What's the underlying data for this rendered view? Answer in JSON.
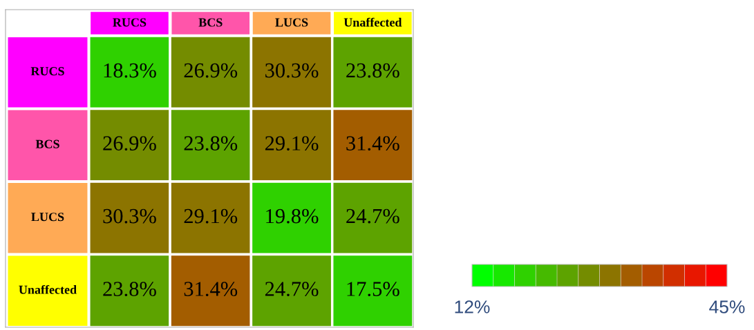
{
  "chart_data": {
    "type": "heatmap",
    "categories": [
      "RUCS",
      "BCS",
      "LUCS",
      "Unaffected"
    ],
    "y_categories": [
      "RUCS",
      "BCS",
      "LUCS",
      "Unaffected"
    ],
    "cells": [
      [
        18.3,
        26.9,
        30.3,
        23.8
      ],
      [
        26.9,
        23.8,
        29.1,
        31.4
      ],
      [
        30.3,
        29.1,
        19.8,
        24.7
      ],
      [
        23.8,
        31.4,
        24.7,
        17.5
      ]
    ],
    "cell_labels": [
      [
        "18.3%",
        "26.9%",
        "30.3%",
        "23.8%"
      ],
      [
        "26.9%",
        "23.8%",
        "29.1%",
        "31.4%"
      ],
      [
        "30.3%",
        "29.1%",
        "19.8%",
        "24.7%"
      ],
      [
        "23.8%",
        "31.4%",
        "24.7%",
        "17.5%"
      ]
    ],
    "clim": [
      12,
      45
    ],
    "cticks": [
      {
        "value": 12,
        "label": "12%"
      },
      {
        "value": 45,
        "label": "45%"
      }
    ]
  }
}
